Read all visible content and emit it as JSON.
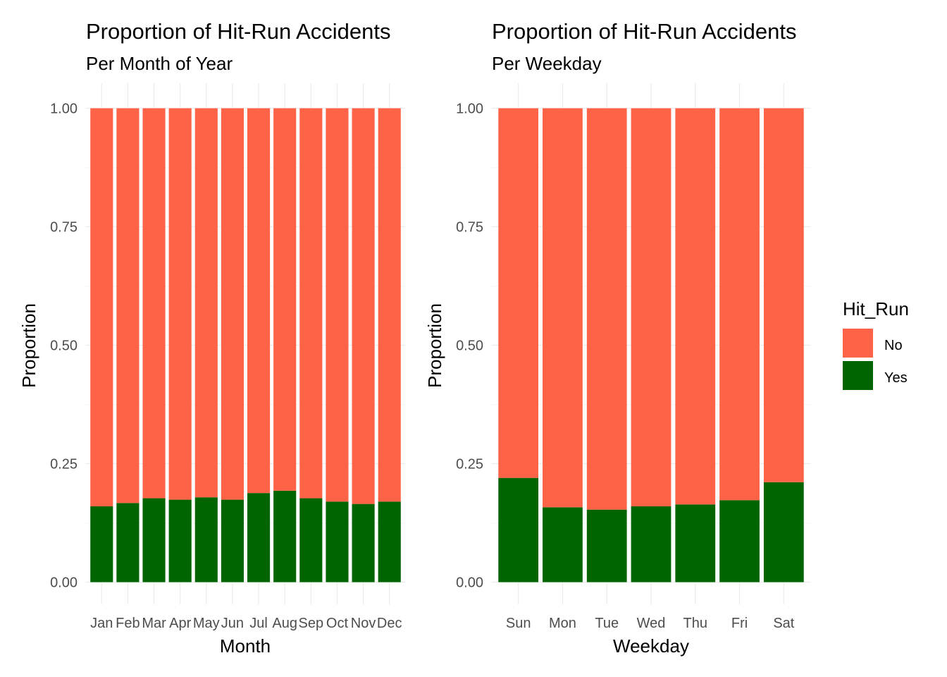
{
  "colors": {
    "no": "#FF6347",
    "yes": "#006400",
    "grid_major": "#EBEBEB",
    "grid_minor": "#F5F5F5",
    "tick_label": "#4D4D4D"
  },
  "legend": {
    "title": "Hit_Run",
    "placement": "right",
    "items": [
      {
        "label": "No",
        "color": "#FF6347"
      },
      {
        "label": "Yes",
        "color": "#006400"
      }
    ]
  },
  "chart_data": [
    {
      "type": "bar",
      "stacked": true,
      "title": "Proportion of Hit-Run Accidents",
      "subtitle": "Per Month of Year",
      "xlabel": "Month",
      "ylabel": "Proportion",
      "ylim": [
        0,
        1
      ],
      "yticks": [
        "0.00",
        "0.25",
        "0.50",
        "0.75",
        "1.00"
      ],
      "grid": true,
      "categories": [
        "Jan",
        "Feb",
        "Mar",
        "Apr",
        "May",
        "Jun",
        "Jul",
        "Aug",
        "Sep",
        "Oct",
        "Nov",
        "Dec"
      ],
      "series": [
        {
          "name": "Yes",
          "values": [
            0.16,
            0.167,
            0.177,
            0.174,
            0.179,
            0.174,
            0.188,
            0.193,
            0.177,
            0.17,
            0.165,
            0.17
          ]
        },
        {
          "name": "No",
          "values": [
            0.84,
            0.833,
            0.823,
            0.826,
            0.821,
            0.826,
            0.812,
            0.807,
            0.823,
            0.83,
            0.835,
            0.83
          ]
        }
      ]
    },
    {
      "type": "bar",
      "stacked": true,
      "title": "Proportion of Hit-Run Accidents",
      "subtitle": "Per Weekday",
      "xlabel": "Weekday",
      "ylabel": "Proportion",
      "ylim": [
        0,
        1
      ],
      "yticks": [
        "0.00",
        "0.25",
        "0.50",
        "0.75",
        "1.00"
      ],
      "grid": true,
      "categories": [
        "Sun",
        "Mon",
        "Tue",
        "Wed",
        "Thu",
        "Fri",
        "Sat"
      ],
      "series": [
        {
          "name": "Yes",
          "values": [
            0.22,
            0.158,
            0.153,
            0.16,
            0.164,
            0.173,
            0.211
          ]
        },
        {
          "name": "No",
          "values": [
            0.78,
            0.842,
            0.847,
            0.84,
            0.836,
            0.827,
            0.789
          ]
        }
      ]
    }
  ]
}
